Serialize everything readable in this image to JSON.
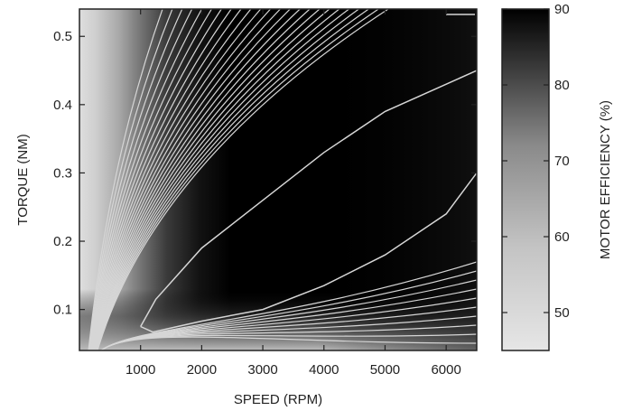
{
  "chart_data": {
    "type": "heatmap",
    "xlabel": "SPEED (RPM)",
    "ylabel": "TORQUE (NM)",
    "colorbar_label": "MOTOR EFFICIENCY (%)",
    "xlim": [
      0,
      6500
    ],
    "ylim": [
      0.04,
      0.54
    ],
    "x_ticks": [
      1000,
      2000,
      3000,
      4000,
      5000,
      6000
    ],
    "y_ticks": [
      0.1,
      0.2,
      0.3,
      0.4,
      0.5
    ],
    "x_tick_labels": [
      "1000",
      "2000",
      "3000",
      "4000",
      "5000",
      "6000"
    ],
    "y_tick_labels": [
      "0.1",
      "0.2",
      "0.3",
      "0.4",
      "0.5"
    ],
    "colorbar_range": [
      45,
      90
    ],
    "colorbar_ticks": [
      50,
      60,
      70,
      80,
      90
    ],
    "colorbar_tick_labels": [
      "50",
      "60",
      "70",
      "80",
      "90"
    ],
    "colormap": [
      "#e6e6e6",
      "#000000"
    ],
    "contour_line_color": "#d6d6d6",
    "grid": false,
    "legend": "colorbar-right",
    "efficiency_contours": [
      {
        "level": 89,
        "points": [
          [
            1000,
            0.075
          ],
          [
            1250,
            0.115
          ],
          [
            2000,
            0.19
          ],
          [
            3000,
            0.26
          ],
          [
            4000,
            0.33
          ],
          [
            5000,
            0.39
          ],
          [
            6000,
            0.43
          ],
          [
            6500,
            0.45
          ]
        ]
      },
      {
        "level": 88,
        "points": [
          [
            6500,
            0.3
          ],
          [
            6000,
            0.24
          ],
          [
            5000,
            0.18
          ],
          [
            4000,
            0.135
          ],
          [
            3000,
            0.1
          ],
          [
            2000,
            0.083
          ],
          [
            1200,
            0.067
          ],
          [
            1000,
            0.075
          ]
        ]
      }
    ]
  }
}
